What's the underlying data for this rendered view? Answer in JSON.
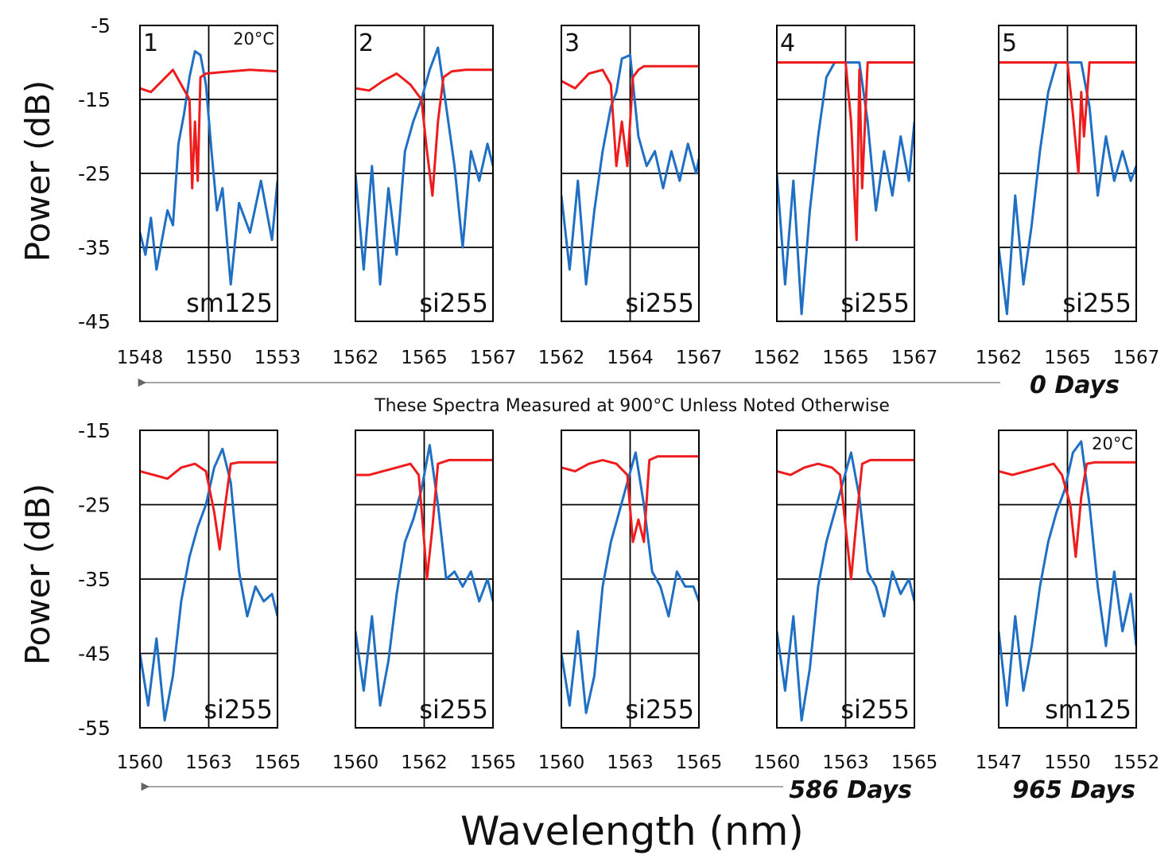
{
  "figure": {
    "ylabel": "Power (dB)",
    "xlabel": "Wavelength (nm)",
    "note": "These Spectra Measured at 900°C Unless Noted Otherwise",
    "colors": {
      "reflection": "#1f6fc4",
      "transmission": "#ee1c1c",
      "grid": "#000000",
      "arrow": "#888888"
    }
  },
  "chart_data": [
    {
      "type": "line",
      "row": 1,
      "col": 1,
      "panel_number": "1",
      "fiber": "sm125",
      "temperature": "20°C",
      "x_ticks": [
        "1548",
        "1550",
        "1553"
      ],
      "ylim": [
        -45,
        -5
      ],
      "y_ticks": [
        "-5",
        "-15",
        "-25",
        "-35",
        "-45"
      ],
      "grid": true,
      "series": [
        {
          "color": "#1f6fc4",
          "x": [
            1548.0,
            1548.2,
            1548.4,
            1548.6,
            1548.8,
            1549.0,
            1549.2,
            1549.4,
            1549.6,
            1549.8,
            1550.0,
            1550.2,
            1550.4,
            1550.6,
            1550.8,
            1551.0,
            1551.3,
            1551.6,
            1552.0,
            1552.4,
            1552.8,
            1553.0
          ],
          "y": [
            -33,
            -36,
            -31,
            -38,
            -34,
            -30,
            -32,
            -21,
            -17,
            -12,
            -8.5,
            -9,
            -13,
            -22,
            -30,
            -27,
            -40,
            -29,
            -33,
            -26,
            -34,
            -26
          ]
        },
        {
          "color": "#ee1c1c",
          "x": [
            1548.0,
            1548.4,
            1548.8,
            1549.2,
            1549.5,
            1549.8,
            1549.9,
            1550.0,
            1550.1,
            1550.2,
            1550.4,
            1551.0,
            1552.0,
            1553.0
          ],
          "y": [
            -13.5,
            -14,
            -12.5,
            -11,
            -13,
            -15,
            -27,
            -18,
            -26,
            -12,
            -11.5,
            -11.3,
            -11,
            -11.2
          ]
        }
      ]
    },
    {
      "type": "line",
      "row": 1,
      "col": 2,
      "panel_number": "2",
      "fiber": "si255",
      "temperature": "",
      "x_ticks": [
        "1562",
        "1565",
        "1567"
      ],
      "ylim": [
        -45,
        -5
      ],
      "y_ticks": [
        "-5",
        "-15",
        "-25",
        "-35",
        "-45"
      ],
      "grid": true,
      "series": [
        {
          "color": "#1f6fc4",
          "x": [
            1562.0,
            1562.3,
            1562.6,
            1562.9,
            1563.2,
            1563.5,
            1563.8,
            1564.1,
            1564.4,
            1564.7,
            1565.0,
            1565.3,
            1565.6,
            1565.9,
            1566.2,
            1566.5,
            1566.8,
            1567.0
          ],
          "y": [
            -25,
            -38,
            -24,
            -40,
            -27,
            -36,
            -22,
            -18,
            -15,
            -11,
            -8,
            -16,
            -24,
            -35,
            -22,
            -26,
            -21,
            -24
          ]
        },
        {
          "color": "#ee1c1c",
          "x": [
            1562.0,
            1562.5,
            1563.0,
            1563.5,
            1564.0,
            1564.4,
            1564.6,
            1564.8,
            1565.0,
            1565.2,
            1565.5,
            1566.0,
            1567.0
          ],
          "y": [
            -13.5,
            -13.8,
            -12.5,
            -11.5,
            -13,
            -15,
            -22,
            -28,
            -18,
            -12,
            -11.2,
            -11,
            -11
          ]
        }
      ]
    },
    {
      "type": "line",
      "row": 1,
      "col": 3,
      "panel_number": "3",
      "fiber": "si255",
      "temperature": "",
      "x_ticks": [
        "1562",
        "1564",
        "1567"
      ],
      "ylim": [
        -45,
        -5
      ],
      "y_ticks": [
        "-5",
        "-15",
        "-25",
        "-35",
        "-45"
      ],
      "grid": true,
      "series": [
        {
          "color": "#1f6fc4",
          "x": [
            1562.0,
            1562.3,
            1562.6,
            1562.9,
            1563.2,
            1563.5,
            1563.8,
            1564.0,
            1564.2,
            1564.5,
            1564.8,
            1565.1,
            1565.4,
            1565.7,
            1566.0,
            1566.3,
            1566.6,
            1566.9,
            1567.0
          ],
          "y": [
            -28,
            -38,
            -26,
            -40,
            -30,
            -22,
            -16,
            -14,
            -9.5,
            -9,
            -20,
            -24,
            -22,
            -27,
            -22,
            -26,
            -21,
            -25,
            -23
          ]
        },
        {
          "color": "#ee1c1c",
          "x": [
            1562.0,
            1562.5,
            1563.0,
            1563.5,
            1563.8,
            1564.0,
            1564.2,
            1564.4,
            1564.6,
            1564.8,
            1565.0,
            1566.0,
            1567.0
          ],
          "y": [
            -12.5,
            -13.5,
            -11.5,
            -11,
            -13,
            -24,
            -18,
            -24,
            -12,
            -11,
            -10.5,
            -10.5,
            -10.5
          ]
        }
      ]
    },
    {
      "type": "line",
      "row": 1,
      "col": 4,
      "panel_number": "4",
      "fiber": "si255",
      "temperature": "",
      "x_ticks": [
        "1562",
        "1565",
        "1567"
      ],
      "ylim": [
        -45,
        -5
      ],
      "y_ticks": [
        "-5",
        "-15",
        "-25",
        "-35",
        "-45"
      ],
      "grid": true,
      "series": [
        {
          "color": "#1f6fc4",
          "x": [
            1562.0,
            1562.3,
            1562.6,
            1562.9,
            1563.2,
            1563.5,
            1563.8,
            1564.1,
            1564.4,
            1564.7,
            1565.0,
            1565.3,
            1565.6,
            1565.9,
            1566.2,
            1566.5,
            1566.8,
            1567.0
          ],
          "y": [
            -25,
            -40,
            -26,
            -44,
            -30,
            -20,
            -12,
            -10,
            -10,
            -10,
            -10,
            -18,
            -30,
            -22,
            -28,
            -20,
            -26,
            -18
          ]
        },
        {
          "color": "#ee1c1c",
          "x": [
            1562.0,
            1563.5,
            1564.5,
            1564.7,
            1564.9,
            1565.0,
            1565.1,
            1565.3,
            1566.0,
            1567.0
          ],
          "y": [
            -10,
            -10,
            -10,
            -18,
            -34,
            -11,
            -27,
            -10,
            -10,
            -10
          ]
        }
      ]
    },
    {
      "type": "line",
      "row": 1,
      "col": 5,
      "panel_number": "5",
      "fiber": "si255",
      "temperature": "",
      "x_ticks": [
        "1562",
        "1565",
        "1567"
      ],
      "ylim": [
        -45,
        -5
      ],
      "y_ticks": [
        "-5",
        "-15",
        "-25",
        "-35",
        "-45"
      ],
      "grid": true,
      "series": [
        {
          "color": "#1f6fc4",
          "x": [
            1562.0,
            1562.3,
            1562.6,
            1562.9,
            1563.2,
            1563.5,
            1563.8,
            1564.1,
            1564.4,
            1564.7,
            1565.0,
            1565.3,
            1565.6,
            1565.9,
            1566.2,
            1566.5,
            1566.8,
            1567.0
          ],
          "y": [
            -35,
            -44,
            -28,
            -40,
            -32,
            -22,
            -14,
            -10,
            -10,
            -10,
            -10,
            -16,
            -28,
            -20,
            -26,
            -22,
            -26,
            -24
          ]
        },
        {
          "color": "#ee1c1c",
          "x": [
            1562.0,
            1563.5,
            1564.5,
            1564.7,
            1564.9,
            1565.0,
            1565.1,
            1565.3,
            1566.0,
            1567.0
          ],
          "y": [
            -10,
            -10,
            -10,
            -17,
            -25,
            -14,
            -20,
            -10,
            -10,
            -10
          ]
        }
      ]
    },
    {
      "type": "line",
      "row": 2,
      "col": 1,
      "panel_number": "",
      "fiber": "si255",
      "temperature": "",
      "x_ticks": [
        "1560",
        "1563",
        "1565"
      ],
      "ylim": [
        -55,
        -15
      ],
      "y_ticks": [
        "-15",
        "-25",
        "-35",
        "-45",
        "-55"
      ],
      "grid": true,
      "series": [
        {
          "color": "#1f6fc4",
          "x": [
            1560.0,
            1560.3,
            1560.6,
            1560.9,
            1561.2,
            1561.5,
            1561.8,
            1562.1,
            1562.4,
            1562.7,
            1563.0,
            1563.3,
            1563.6,
            1563.9,
            1564.2,
            1564.5,
            1564.8,
            1565.0
          ],
          "y": [
            -45,
            -52,
            -43,
            -54,
            -48,
            -38,
            -32,
            -28,
            -25,
            -20,
            -17.5,
            -22,
            -34,
            -40,
            -36,
            -38,
            -37,
            -40
          ]
        },
        {
          "color": "#ee1c1c",
          "x": [
            1560.0,
            1560.5,
            1561.0,
            1561.5,
            1562.0,
            1562.4,
            1562.7,
            1562.9,
            1563.1,
            1563.3,
            1563.6,
            1564.0,
            1565.0
          ],
          "y": [
            -20.5,
            -21,
            -21.5,
            -20,
            -19.5,
            -20.5,
            -26,
            -31,
            -25,
            -19.5,
            -19.3,
            -19.3,
            -19.3
          ]
        }
      ]
    },
    {
      "type": "line",
      "row": 2,
      "col": 2,
      "panel_number": "",
      "fiber": "si255",
      "temperature": "",
      "x_ticks": [
        "1560",
        "1562",
        "1565"
      ],
      "ylim": [
        -55,
        -15
      ],
      "y_ticks": [
        "-15",
        "-25",
        "-35",
        "-45",
        "-55"
      ],
      "grid": true,
      "series": [
        {
          "color": "#1f6fc4",
          "x": [
            1560.0,
            1560.3,
            1560.6,
            1560.9,
            1561.2,
            1561.5,
            1561.8,
            1562.1,
            1562.4,
            1562.7,
            1563.0,
            1563.3,
            1563.6,
            1563.9,
            1564.2,
            1564.5,
            1564.8,
            1565.0
          ],
          "y": [
            -42,
            -50,
            -40,
            -52,
            -46,
            -37,
            -30,
            -27,
            -23,
            -17,
            -25,
            -35,
            -34,
            -36,
            -34,
            -38,
            -35,
            -38
          ]
        },
        {
          "color": "#ee1c1c",
          "x": [
            1560.0,
            1560.5,
            1561.0,
            1561.5,
            1562.0,
            1562.3,
            1562.5,
            1562.6,
            1562.8,
            1563.0,
            1563.4,
            1564.0,
            1565.0
          ],
          "y": [
            -21,
            -21,
            -20.5,
            -20,
            -19.5,
            -21,
            -30,
            -35,
            -28,
            -19.5,
            -19,
            -19,
            -19
          ]
        }
      ]
    },
    {
      "type": "line",
      "row": 2,
      "col": 3,
      "panel_number": "",
      "fiber": "si255",
      "temperature": "",
      "x_ticks": [
        "1560",
        "1563",
        "1565"
      ],
      "ylim": [
        -55,
        -15
      ],
      "y_ticks": [
        "-15",
        "-25",
        "-35",
        "-45",
        "-55"
      ],
      "grid": true,
      "series": [
        {
          "color": "#1f6fc4",
          "x": [
            1560.0,
            1560.3,
            1560.6,
            1560.9,
            1561.2,
            1561.5,
            1561.8,
            1562.1,
            1562.4,
            1562.7,
            1563.0,
            1563.3,
            1563.6,
            1563.9,
            1564.2,
            1564.5,
            1564.8,
            1565.0
          ],
          "y": [
            -45,
            -52,
            -42,
            -53,
            -48,
            -36,
            -30,
            -26,
            -22,
            -18,
            -25,
            -34,
            -36,
            -40,
            -34,
            -36,
            -36,
            -38
          ]
        },
        {
          "color": "#ee1c1c",
          "x": [
            1560.0,
            1560.5,
            1561.0,
            1561.5,
            1562.0,
            1562.4,
            1562.6,
            1562.8,
            1563.0,
            1563.2,
            1563.5,
            1564.0,
            1565.0
          ],
          "y": [
            -20,
            -20.5,
            -19.5,
            -19,
            -19.5,
            -21,
            -30,
            -27,
            -30,
            -19,
            -18.5,
            -18.5,
            -18.5
          ]
        }
      ]
    },
    {
      "type": "line",
      "row": 2,
      "col": 4,
      "panel_number": "",
      "fiber": "si255",
      "temperature": "",
      "x_ticks": [
        "1560",
        "1563",
        "1565"
      ],
      "ylim": [
        -55,
        -15
      ],
      "y_ticks": [
        "-15",
        "-25",
        "-35",
        "-45",
        "-55"
      ],
      "grid": true,
      "series": [
        {
          "color": "#1f6fc4",
          "x": [
            1560.0,
            1560.3,
            1560.6,
            1560.9,
            1561.2,
            1561.5,
            1561.8,
            1562.1,
            1562.4,
            1562.7,
            1563.0,
            1563.3,
            1563.6,
            1563.9,
            1564.2,
            1564.5,
            1564.8,
            1565.0
          ],
          "y": [
            -42,
            -50,
            -40,
            -54,
            -47,
            -36,
            -30,
            -26,
            -22,
            -18,
            -24,
            -34,
            -36,
            -40,
            -34,
            -37,
            -35,
            -38
          ]
        },
        {
          "color": "#ee1c1c",
          "x": [
            1560.0,
            1560.5,
            1561.0,
            1561.5,
            1562.0,
            1562.3,
            1562.5,
            1562.7,
            1562.9,
            1563.1,
            1563.4,
            1564.0,
            1565.0
          ],
          "y": [
            -20.5,
            -21,
            -20,
            -19.5,
            -20,
            -21,
            -28,
            -35,
            -27,
            -19.5,
            -19,
            -19,
            -19
          ]
        }
      ]
    },
    {
      "type": "line",
      "row": 2,
      "col": 5,
      "panel_number": "",
      "fiber": "sm125",
      "temperature": "20°C",
      "x_ticks": [
        "1547",
        "1550",
        "1552"
      ],
      "ylim": [
        -55,
        -15
      ],
      "y_ticks": [
        "-15",
        "-25",
        "-35",
        "-45",
        "-55"
      ],
      "grid": true,
      "series": [
        {
          "color": "#1f6fc4",
          "x": [
            1547.0,
            1547.3,
            1547.6,
            1547.9,
            1548.2,
            1548.5,
            1548.8,
            1549.1,
            1549.4,
            1549.7,
            1550.0,
            1550.3,
            1550.6,
            1550.9,
            1551.2,
            1551.5,
            1551.8,
            1552.0
          ],
          "y": [
            -42,
            -52,
            -40,
            -50,
            -44,
            -36,
            -30,
            -26,
            -23,
            -18,
            -16.5,
            -25,
            -36,
            -44,
            -34,
            -42,
            -37,
            -44
          ]
        },
        {
          "color": "#ee1c1c",
          "x": [
            1547.0,
            1547.5,
            1548.0,
            1548.5,
            1549.0,
            1549.3,
            1549.6,
            1549.8,
            1550.0,
            1550.2,
            1550.5,
            1551.0,
            1552.0
          ],
          "y": [
            -20.5,
            -21,
            -20.5,
            -20,
            -19.5,
            -21,
            -25,
            -32,
            -24,
            -19.5,
            -19.3,
            -19.3,
            -19.3
          ]
        }
      ]
    }
  ],
  "annotations": {
    "top_days": "0 Days",
    "bottom_days_left": "586 Days",
    "bottom_days_right": "965 Days"
  }
}
